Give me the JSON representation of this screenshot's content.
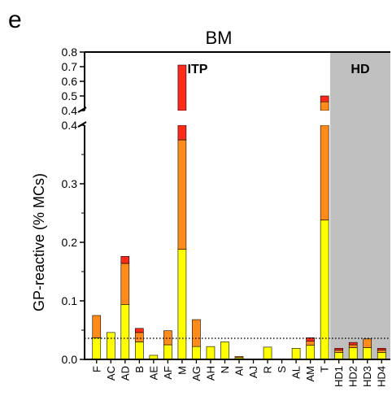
{
  "panel_label": "e",
  "chart_data": {
    "type": "bar",
    "stacked": true,
    "broken_y_axis": true,
    "title": "BM",
    "ylabel": "GP-reactive (% MCs)",
    "xlabel": "",
    "group_labels": [
      "ITP",
      "HD"
    ],
    "hd_shaded_from": "HD1",
    "categories": [
      "F",
      "AC",
      "AD",
      "B",
      "AE",
      "AF",
      "M",
      "AG",
      "AH",
      "N",
      "AI",
      "AJ",
      "R",
      "S",
      "AL",
      "AM",
      "T",
      "HD1",
      "HD2",
      "HD3",
      "HD4"
    ],
    "series": [
      {
        "color": "#ffff00",
        "values": [
          0.037,
          0.046,
          0.094,
          0.03,
          0.007,
          0.025,
          0.188,
          0.022,
          0.022,
          0.03,
          0.003,
          0,
          0.021,
          0,
          0.019,
          0.024,
          0.238,
          0.012,
          0.02,
          0.02,
          0.012
        ]
      },
      {
        "color": "#ff8c1a",
        "values": [
          0.038,
          0.0,
          0.07,
          0.016,
          0,
          0.024,
          0.187,
          0.046,
          0,
          0,
          0.002,
          0,
          0,
          0,
          0,
          0.007,
          0.222,
          0.004,
          0.005,
          0.015,
          0.004
        ]
      },
      {
        "color": "#ff2a1a",
        "values": [
          0,
          0,
          0.012,
          0.007,
          0,
          0,
          0.336,
          0,
          0,
          0,
          0,
          0,
          0,
          0,
          0,
          0.006,
          0.04,
          0.003,
          0.004,
          0,
          0.003
        ]
      }
    ],
    "ylim_lower": [
      0,
      0.4
    ],
    "yticks_lower": [
      "0.0",
      "0.1",
      "0.2",
      "0.3",
      "0.4"
    ],
    "ylim_upper": [
      0.4,
      0.8
    ],
    "yticks_upper": [
      "0.4",
      "0.5",
      "0.6",
      "0.7",
      "0.8"
    ],
    "threshold": 0.036
  }
}
